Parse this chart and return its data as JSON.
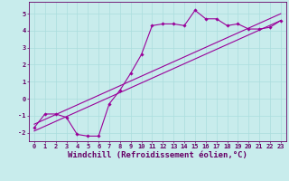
{
  "background_color": "#c8ecec",
  "grid_color": "#aadddd",
  "line_color": "#990099",
  "xlabel": "Windchill (Refroidissement éolien,°C)",
  "xlim": [
    -0.5,
    23.5
  ],
  "ylim": [
    -2.5,
    5.7
  ],
  "xticks": [
    0,
    1,
    2,
    3,
    4,
    5,
    6,
    7,
    8,
    9,
    10,
    11,
    12,
    13,
    14,
    15,
    16,
    17,
    18,
    19,
    20,
    21,
    22,
    23
  ],
  "yticks": [
    -2,
    -1,
    0,
    1,
    2,
    3,
    4,
    5
  ],
  "curve1_x": [
    0,
    1,
    2,
    3,
    4,
    5,
    6,
    7,
    8,
    9,
    10,
    11,
    12,
    13,
    14,
    15,
    16,
    17,
    18,
    19,
    20,
    21,
    22,
    23
  ],
  "curve1_y": [
    -1.7,
    -0.9,
    -0.9,
    -1.1,
    -2.1,
    -2.2,
    -2.2,
    -0.3,
    0.5,
    1.5,
    2.6,
    4.3,
    4.4,
    4.4,
    4.3,
    5.2,
    4.7,
    4.7,
    4.3,
    4.4,
    4.1,
    4.1,
    4.2,
    4.6
  ],
  "line2_x": [
    0,
    23
  ],
  "line2_y": [
    -1.9,
    4.6
  ],
  "line3_x": [
    0,
    23
  ],
  "line3_y": [
    -1.5,
    5.0
  ],
  "font_color": "#660066",
  "tick_fontsize": 5,
  "label_fontsize": 6.5
}
